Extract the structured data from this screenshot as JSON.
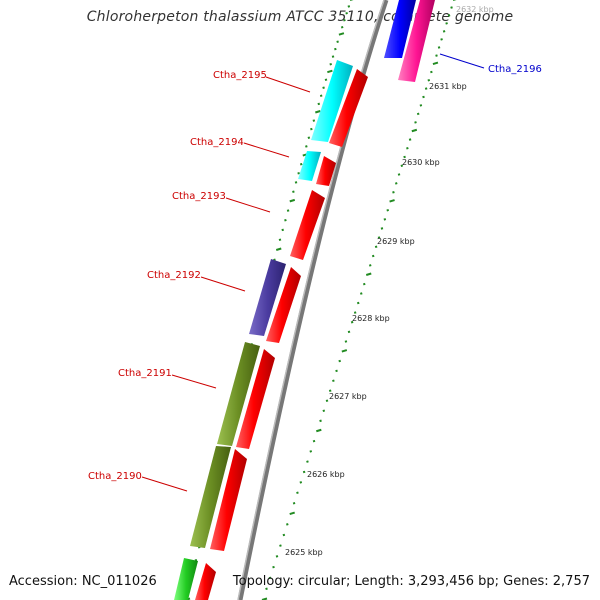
{
  "title": "Chloroherpeton thalassium ATCC 35110, complete genome",
  "accession": "Accession: NC_011026",
  "topology": "Topology: circular; Length: 3,293,456 bp; Genes: 2,757",
  "scale_labels": [
    "2632 kbp",
    "2631 kbp",
    "2630 kbp",
    "2629 kbp",
    "2628 kbp",
    "2627 kbp",
    "2626 kbp",
    "2625 kbp"
  ],
  "genes": [
    {
      "label": "Ctha_2196",
      "color": "#0000cc",
      "strand": "forward"
    },
    {
      "label": "Ctha_2195",
      "color": "#cc0000",
      "strand": "reverse"
    },
    {
      "label": "Ctha_2194",
      "color": "#cc0000",
      "strand": "reverse"
    },
    {
      "label": "Ctha_2193",
      "color": "#cc0000",
      "strand": "reverse"
    },
    {
      "label": "Ctha_2192",
      "color": "#cc0000",
      "strand": "reverse"
    },
    {
      "label": "Ctha_2191",
      "color": "#cc0000",
      "strand": "reverse"
    },
    {
      "label": "Ctha_2190",
      "color": "#cc0000",
      "strand": "reverse"
    }
  ],
  "colors": {
    "cog_cyan": "#00ffff",
    "cog_indigo": "#4b3ca0",
    "cog_olive": "#6b8e23",
    "cog_green": "#22cc22",
    "cds": "#ff0000",
    "cog_blue": "#0000ff",
    "cog_magenta": "#ff1493",
    "backbone": "#888888",
    "tick": "#228b22"
  }
}
